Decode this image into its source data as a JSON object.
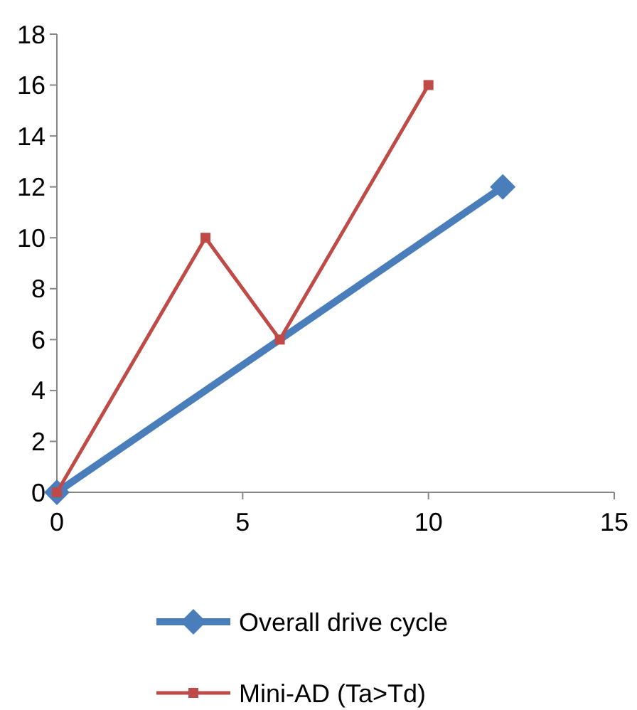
{
  "chart_data": {
    "type": "line",
    "xlim": [
      0,
      15
    ],
    "xticks": [
      0,
      5,
      10,
      15
    ],
    "ylim": [
      0,
      18
    ],
    "yticks": [
      0,
      2,
      4,
      6,
      8,
      10,
      12,
      14,
      16,
      18
    ],
    "grid": false,
    "legend": "bottom",
    "series": [
      {
        "name": "Overall drive cycle",
        "color": "#4a7ebb",
        "marker": "diamond",
        "x": [
          0,
          12
        ],
        "values": [
          0,
          12
        ]
      },
      {
        "name": "Mini-AD (Ta>Td)",
        "color": "#be4b48",
        "marker": "square",
        "x": [
          0,
          4,
          6,
          10
        ],
        "values": [
          0,
          10,
          6,
          16
        ]
      }
    ]
  }
}
